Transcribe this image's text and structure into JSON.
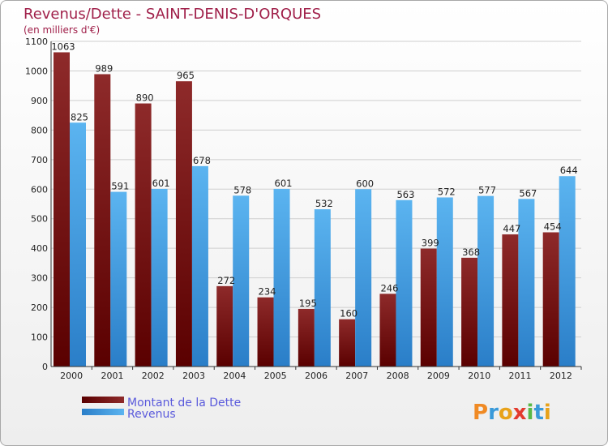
{
  "chart_data": {
    "type": "bar",
    "title": "Revenus/Dette - SAINT-DENIS-D'ORQUES",
    "subtitle": "(en milliers d'€)",
    "categories": [
      "2000",
      "2001",
      "2002",
      "2003",
      "2004",
      "2005",
      "2006",
      "2007",
      "2008",
      "2009",
      "2010",
      "2011",
      "2012"
    ],
    "series": [
      {
        "name": "Montant de la Dette",
        "color": "#8b1a1a",
        "values": [
          1063,
          989,
          890,
          965,
          272,
          234,
          195,
          160,
          246,
          399,
          368,
          447,
          454
        ]
      },
      {
        "name": "Revenus",
        "color": "#4aa3e6",
        "values": [
          825,
          591,
          601,
          678,
          578,
          601,
          532,
          600,
          563,
          572,
          577,
          567,
          644
        ]
      }
    ],
    "ylim": [
      0,
      1100
    ],
    "yticks": [
      0,
      100,
      200,
      300,
      400,
      500,
      600,
      700,
      800,
      900,
      1000,
      1100
    ],
    "grid": true,
    "legend": "bottom-left"
  },
  "logo": {
    "letters": [
      "P",
      "r",
      "o",
      "x",
      "i",
      "t",
      "i"
    ],
    "colors": [
      "#f08a24",
      "#3a9ad9",
      "#e8a21a",
      "#e33b2e",
      "#59b947",
      "#3a9ad9",
      "#e8a21a"
    ]
  }
}
